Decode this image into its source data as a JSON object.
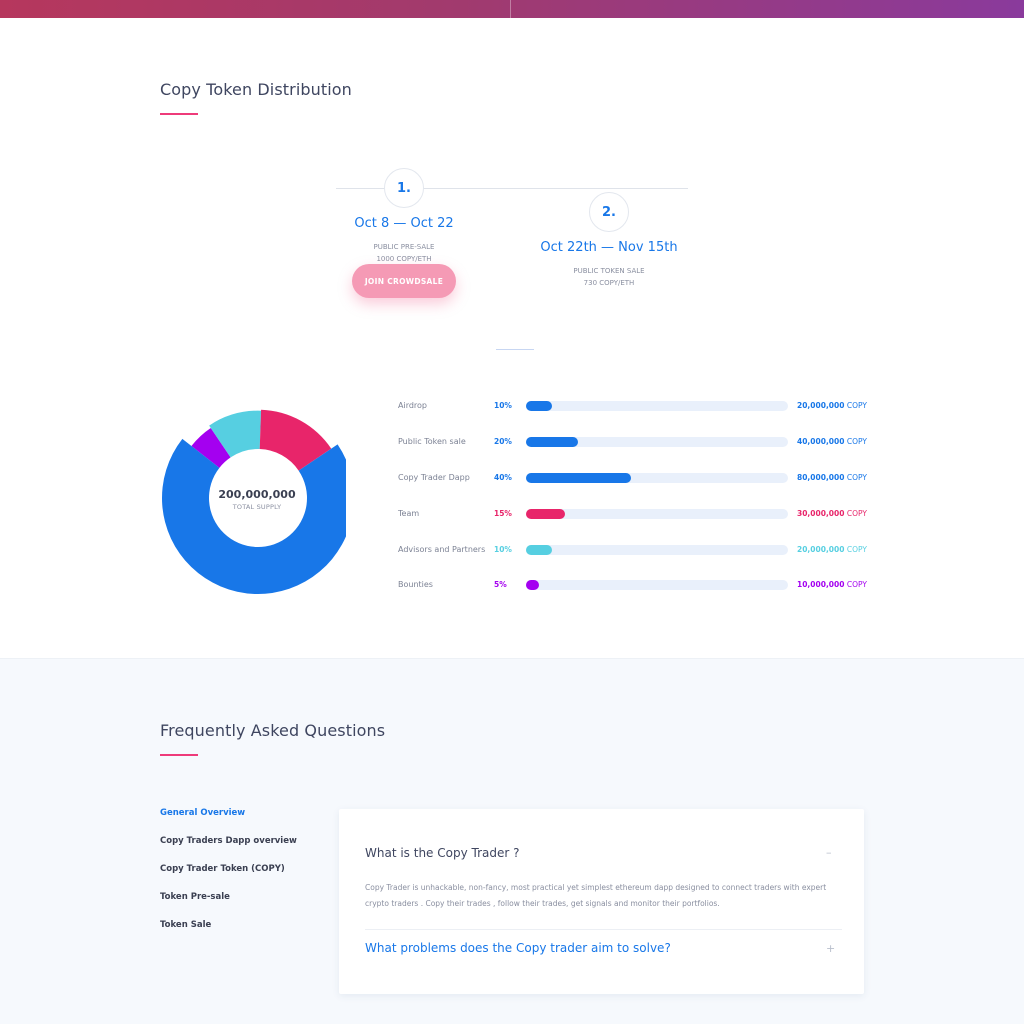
{
  "distribution": {
    "title": "Copy Token Distribution",
    "steps": [
      {
        "number": "1.",
        "date": "Oct 8 — Oct 22",
        "line1": "PUBLIC PRE-SALE",
        "line2": "1000 COPY/ETH",
        "button": "JOIN CROWDSALE"
      },
      {
        "number": "2.",
        "date": "Oct 22th — Nov 15th",
        "line1": "PUBLIC TOKEN SALE",
        "line2": "730 COPY/ETH"
      }
    ]
  },
  "supply": {
    "total": "200,000,000",
    "caption": "TOTAL SUPPLY",
    "unit": "COPY"
  },
  "colors": {
    "airdrop": "#1877e8",
    "team": "#e8256a",
    "advisors": "#56cfe1",
    "bounties": "#a400f0"
  },
  "allocations": [
    {
      "label": "Airdrop",
      "pct": "10%",
      "fraction": 0.1,
      "amount": "20,000,000",
      "color": "#1877e8"
    },
    {
      "label": "Public Token sale",
      "pct": "20%",
      "fraction": 0.2,
      "amount": "40,000,000",
      "color": "#1877e8"
    },
    {
      "label": "Copy Trader Dapp",
      "pct": "40%",
      "fraction": 0.4,
      "amount": "80,000,000",
      "color": "#1877e8"
    },
    {
      "label": "Team",
      "pct": "15%",
      "fraction": 0.15,
      "amount": "30,000,000",
      "color": "#e8256a"
    },
    {
      "label": "Advisors and Partners",
      "pct": "10%",
      "fraction": 0.1,
      "amount": "20,000,000",
      "color": "#56cfe1"
    },
    {
      "label": "Bounties",
      "pct": "5%",
      "fraction": 0.05,
      "amount": "10,000,000",
      "color": "#a400f0"
    }
  ],
  "faq": {
    "title": "Frequently Asked Questions",
    "nav": [
      "General Overview",
      "Copy Traders Dapp overview",
      "Copy Trader Token (COPY)",
      "Token Pre-sale",
      "Token Sale"
    ],
    "active_nav": 0,
    "questions": [
      {
        "q": "What is the Copy Trader ?",
        "toggle": "–",
        "answer": "Copy Trader is unhackable, non-fancy, most practical yet simplest ethereum dapp designed to connect traders with expert crypto traders . Copy their trades , follow their trades, get signals and monitor their portfolios."
      },
      {
        "q": "What problems does the Copy trader aim to solve?",
        "toggle": "+"
      }
    ]
  }
}
